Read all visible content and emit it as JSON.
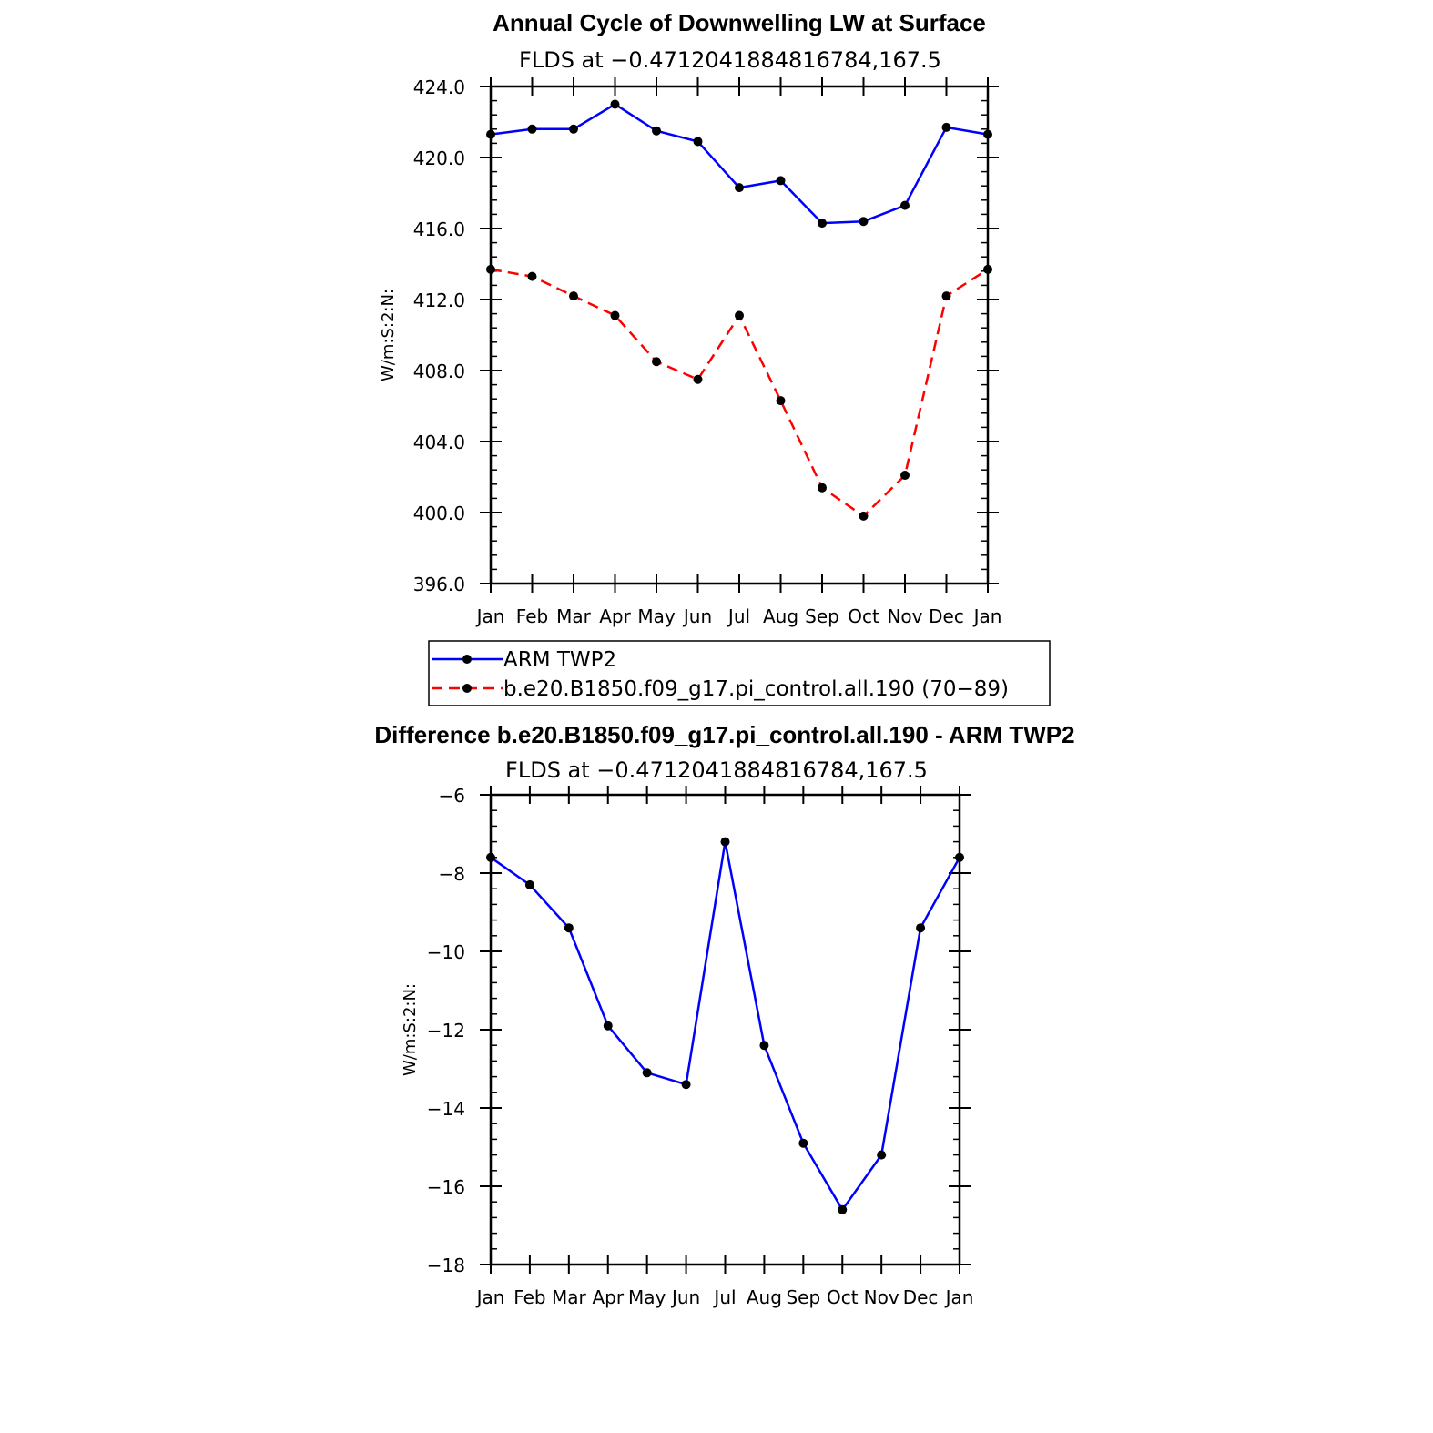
{
  "chart_data": [
    {
      "type": "line",
      "title": "Annual Cycle of Downwelling LW at Surface",
      "subtitle": "FLDS at −0.4712041884816784,167.5",
      "ylabel": "W/m:S:2:N:",
      "ylim": [
        396,
        424
      ],
      "yticks": [
        "424.0",
        "420.0",
        "416.0",
        "412.0",
        "408.0",
        "404.0",
        "400.0",
        "396.0"
      ],
      "ytick_values": [
        424,
        420,
        416,
        412,
        408,
        404,
        400,
        396
      ],
      "categories": [
        "Jan",
        "Feb",
        "Mar",
        "Apr",
        "May",
        "Jun",
        "Jul",
        "Aug",
        "Sep",
        "Oct",
        "Nov",
        "Dec",
        "Jan"
      ],
      "grid": false,
      "legend_position": "bottom",
      "series": [
        {
          "name": "ARM  TWP2",
          "color": "#0000ff",
          "dash": "solid",
          "values": [
            421.3,
            421.6,
            421.6,
            423.0,
            421.5,
            420.9,
            418.3,
            418.7,
            416.3,
            416.4,
            417.3,
            421.7,
            421.3
          ]
        },
        {
          "name": "b.e20.B1850.f09_g17.pi_control.all.190 (70−89)",
          "color": "#ff0000",
          "dash": "dashed",
          "values": [
            413.7,
            413.3,
            412.2,
            411.1,
            408.5,
            407.5,
            411.1,
            406.3,
            401.4,
            399.8,
            402.1,
            412.2,
            413.7
          ]
        }
      ]
    },
    {
      "type": "line",
      "title": "Difference b.e20.B1850.f09_g17.pi_control.all.190 - ARM TWP2",
      "subtitle": "FLDS at −0.4712041884816784,167.5",
      "ylabel": "W/m:S:2:N:",
      "ylim": [
        -18,
        -6
      ],
      "yticks": [
        "−6",
        "−8",
        "−10",
        "−12",
        "−14",
        "−16",
        "−18"
      ],
      "ytick_values": [
        -6,
        -8,
        -10,
        -12,
        -14,
        -16,
        -18
      ],
      "categories": [
        "Jan",
        "Feb",
        "Mar",
        "Apr",
        "May",
        "Jun",
        "Jul",
        "Aug",
        "Sep",
        "Oct",
        "Nov",
        "Dec",
        "Jan"
      ],
      "grid": false,
      "series": [
        {
          "color": "#0000ff",
          "dash": "solid",
          "values": [
            -7.6,
            -8.3,
            -9.4,
            -11.9,
            -13.1,
            -13.4,
            -7.2,
            -12.4,
            -14.9,
            -16.6,
            -15.2,
            -9.4,
            -7.6
          ]
        }
      ]
    }
  ]
}
